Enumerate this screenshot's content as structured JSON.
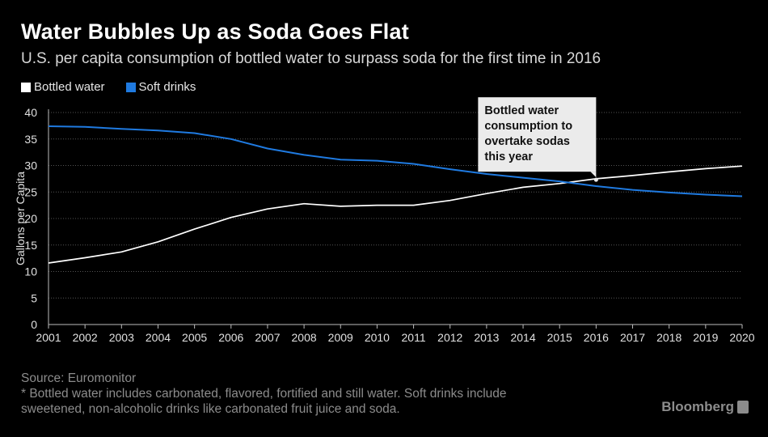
{
  "header": {
    "title": "Water Bubbles Up as Soda Goes Flat",
    "subtitle": "U.S. per capita consumption of bottled water to surpass soda for the first time in 2016"
  },
  "legend": {
    "items": [
      {
        "label": "Bottled water",
        "color": "#ffffff"
      },
      {
        "label": "Soft drinks",
        "color": "#1f7ae0"
      }
    ]
  },
  "chart_data": {
    "type": "line",
    "title": "Water Bubbles Up as Soda Goes Flat",
    "subtitle": "U.S. per capita consumption of bottled water to surpass soda for the first time in 2016",
    "xlabel": "",
    "ylabel": "Gallons per Capita",
    "x": [
      2001,
      2002,
      2003,
      2004,
      2005,
      2006,
      2007,
      2008,
      2009,
      2010,
      2011,
      2012,
      2013,
      2014,
      2015,
      2016,
      2017,
      2018,
      2019,
      2020
    ],
    "ylim": [
      0,
      40
    ],
    "yticks": [
      0,
      5,
      10,
      15,
      20,
      25,
      30,
      35,
      40
    ],
    "grid": true,
    "legend_position": "top-left",
    "series": [
      {
        "name": "Bottled water",
        "color": "#ffffff",
        "values": [
          11.6,
          12.6,
          13.7,
          15.6,
          18.0,
          20.2,
          21.8,
          22.8,
          22.3,
          22.5,
          22.5,
          23.4,
          24.7,
          25.9,
          26.6,
          27.5,
          28.1,
          28.8,
          29.4,
          29.9
        ]
      },
      {
        "name": "Soft drinks",
        "color": "#1f7ae0",
        "values": [
          37.4,
          37.3,
          36.9,
          36.6,
          36.1,
          35.0,
          33.2,
          32.0,
          31.1,
          30.9,
          30.3,
          29.3,
          28.4,
          27.7,
          27.0,
          26.1,
          25.4,
          24.9,
          24.5,
          24.2
        ]
      }
    ],
    "annotation": {
      "text_lines": [
        "Bottled water",
        "consumption to",
        "overtake sodas",
        "this year"
      ],
      "x": 2016,
      "y": 27.3
    }
  },
  "footer": {
    "source": "Source: Euromonitor",
    "note_line1": "* Bottled water includes carbonated, flavored, fortified and still water. Soft drinks include",
    "note_line2": "sweetened, non-alcoholic drinks like carbonated fruit juice and soda."
  },
  "brand": {
    "name": "Bloomberg"
  }
}
